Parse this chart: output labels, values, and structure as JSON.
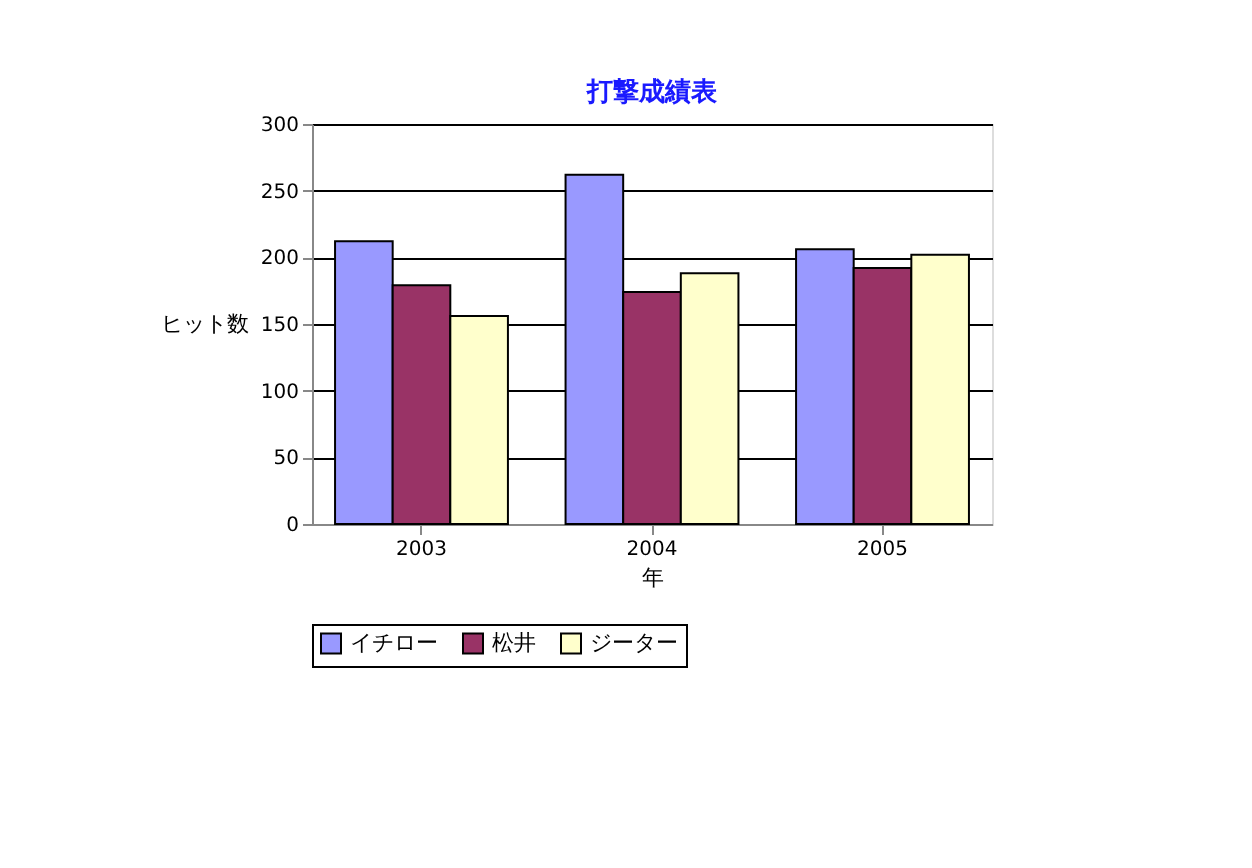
{
  "chart_data": {
    "type": "bar",
    "title": "打撃成績表",
    "xlabel": "年",
    "ylabel": "ヒット数",
    "categories": [
      "2003",
      "2004",
      "2005"
    ],
    "series": [
      {
        "name": "イチロー",
        "color": "#9999ff",
        "values": [
          212,
          262,
          206
        ]
      },
      {
        "name": "松井",
        "color": "#993366",
        "values": [
          179,
          174,
          192
        ]
      },
      {
        "name": "ジーター",
        "color": "#ffffcc",
        "values": [
          156,
          188,
          202
        ]
      }
    ],
    "ylim": [
      0,
      300
    ],
    "yticks": [
      0,
      50,
      100,
      150,
      200,
      250,
      300
    ],
    "grid": "y",
    "legend": "bottom"
  }
}
